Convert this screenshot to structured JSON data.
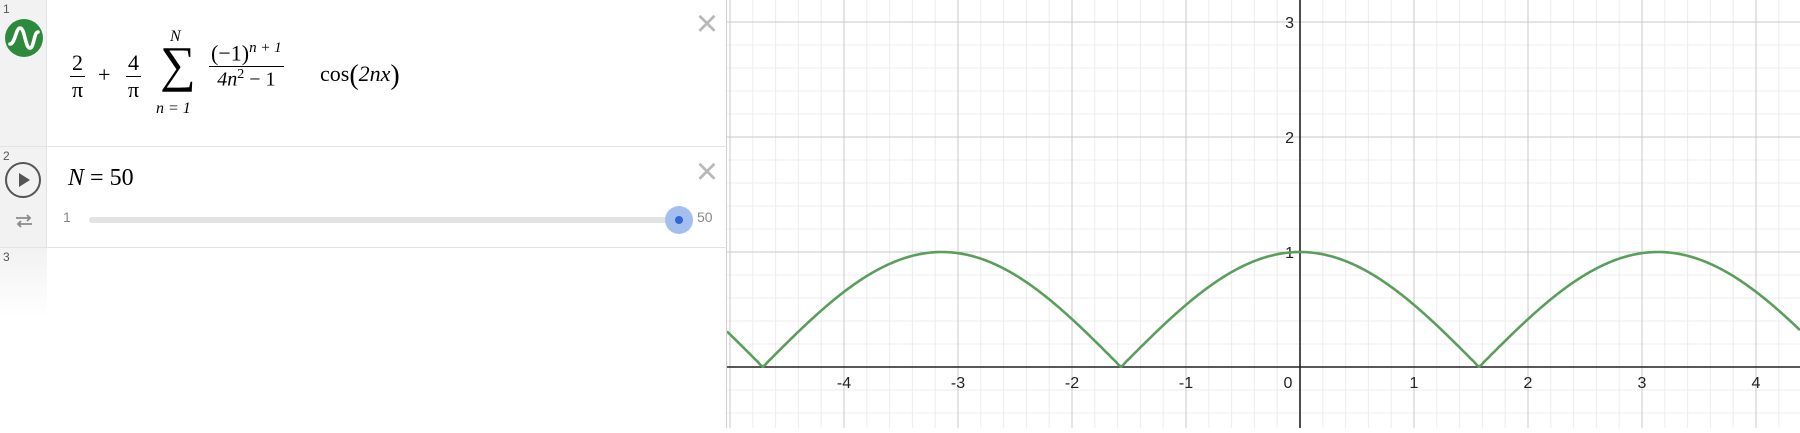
{
  "expressions": [
    {
      "index": "1",
      "icon": "desmos-wave-logo-icon",
      "formula": {
        "term1_num": "2",
        "term1_den": "π",
        "plus": "+",
        "term2_num": "4",
        "term2_den": "π",
        "sum_symbol": "∑",
        "sum_upper": "N",
        "sum_lower": "n = 1",
        "frac_num_base": "(−1)",
        "frac_num_exp": "n + 1",
        "frac_den_a": "4n",
        "frac_den_exp": "2",
        "frac_den_b": " − 1",
        "func": "cos",
        "arg_open": "(",
        "arg": "2nx",
        "arg_close": ")"
      }
    },
    {
      "index": "2",
      "icon": "play-icon",
      "secondary_icon": "repeat-icon",
      "variable": "N",
      "equals": "=",
      "value": "50",
      "slider": {
        "min": "1",
        "max": "50",
        "current": 50
      }
    },
    {
      "index": "3"
    }
  ],
  "close_icon": "close-icon",
  "graph": {
    "x_tick_labels": [
      "-4",
      "-3",
      "-2",
      "-1",
      "0",
      "1",
      "2",
      "3",
      "4"
    ],
    "y_tick_labels": [
      "1",
      "2",
      "3"
    ],
    "curve_color": "#5a9e5c",
    "axis_color": "#222222",
    "logo_color": "#2d8a3c",
    "slider_color": "#2f67d8"
  }
}
